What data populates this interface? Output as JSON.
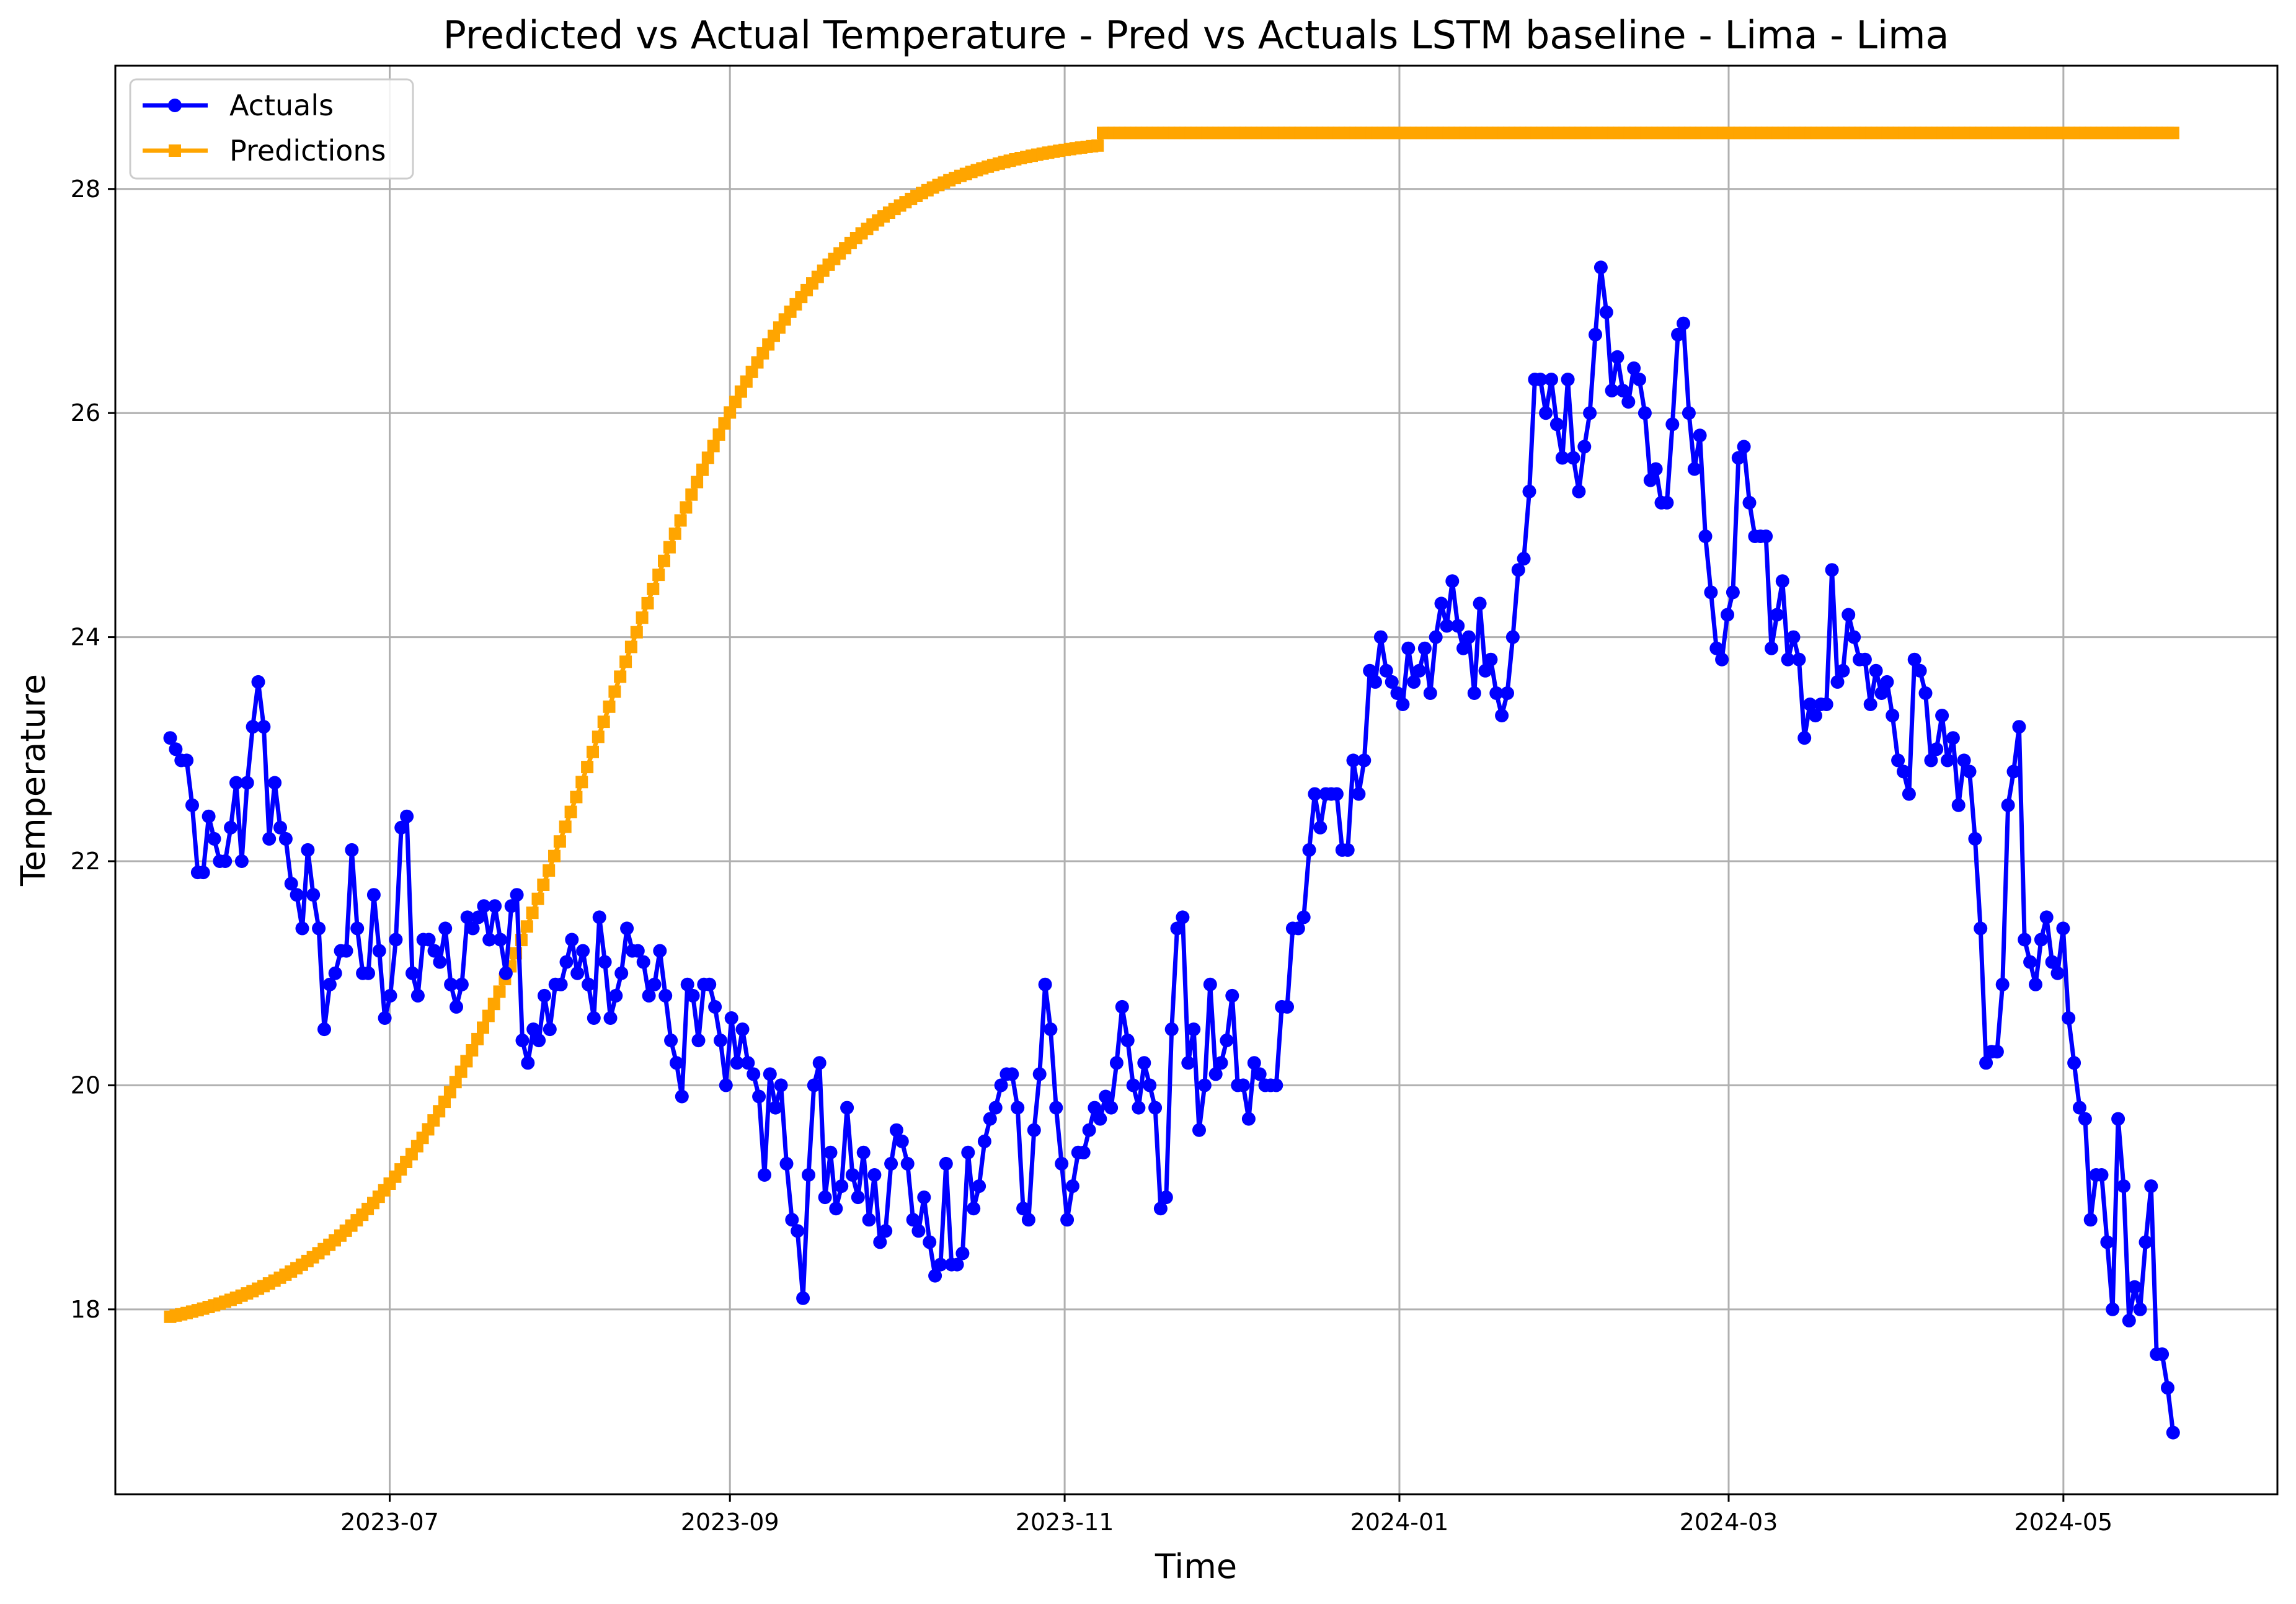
{
  "chart_data": {
    "type": "line",
    "title": "Predicted vs Actual Temperature - Pred vs Actuals LSTM baseline - Lima - Lima",
    "xlabel": "Time",
    "ylabel": "Temperature",
    "x_ticks": [
      "2023-07",
      "2023-09",
      "2023-11",
      "2024-01",
      "2024-03",
      "2024-05"
    ],
    "y_ticks": [
      18,
      20,
      22,
      24,
      26,
      28
    ],
    "xlim": [
      "2023-05-12",
      "2024-06-09"
    ],
    "ylim": [
      16.35,
      29.1
    ],
    "grid": true,
    "legend_position": "top-left",
    "x_start": "2023-05-22",
    "x_end": "2024-05-21",
    "series": [
      {
        "name": "Actuals",
        "color": "#0000ff",
        "marker": "circle",
        "values": [
          23.1,
          23.0,
          22.9,
          22.9,
          22.5,
          21.9,
          21.9,
          22.4,
          22.2,
          22.0,
          22.0,
          22.3,
          22.7,
          22.0,
          22.7,
          23.2,
          23.6,
          23.2,
          22.2,
          22.7,
          22.3,
          22.2,
          21.8,
          21.7,
          21.4,
          22.1,
          21.7,
          21.4,
          20.5,
          20.9,
          21.0,
          21.2,
          21.2,
          22.1,
          21.4,
          21.0,
          21.0,
          21.7,
          21.2,
          20.6,
          20.8,
          21.3,
          22.3,
          22.4,
          21.0,
          20.8,
          21.3,
          21.3,
          21.2,
          21.1,
          21.4,
          20.9,
          20.7,
          20.9,
          21.5,
          21.4,
          21.5,
          21.6,
          21.3,
          21.6,
          21.3,
          21.0,
          21.6,
          21.7,
          20.4,
          20.2,
          20.5,
          20.4,
          20.8,
          20.5,
          20.9,
          20.9,
          21.1,
          21.3,
          21.0,
          21.2,
          20.9,
          20.6,
          21.5,
          21.1,
          20.6,
          20.8,
          21.0,
          21.4,
          21.2,
          21.2,
          21.1,
          20.8,
          20.9,
          21.2,
          20.8,
          20.4,
          20.2,
          19.9,
          20.9,
          20.8,
          20.4,
          20.9,
          20.9,
          20.7,
          20.4,
          20.0,
          20.6,
          20.2,
          20.5,
          20.2,
          20.1,
          19.9,
          19.2,
          20.1,
          19.8,
          20.0,
          19.3,
          18.8,
          18.7,
          18.1,
          19.2,
          20.0,
          20.2,
          19.0,
          19.4,
          18.9,
          19.1,
          19.8,
          19.2,
          19.0,
          19.4,
          18.8,
          19.2,
          18.6,
          18.7,
          19.3,
          19.6,
          19.5,
          19.3,
          18.8,
          18.7,
          19.0,
          18.6,
          18.3,
          18.4,
          19.3,
          18.4,
          18.4,
          18.5,
          19.4,
          18.9,
          19.1,
          19.5,
          19.7,
          19.8,
          20.0,
          20.1,
          20.1,
          19.8,
          18.9,
          18.8,
          19.6,
          20.1,
          20.9,
          20.5,
          19.8,
          19.3,
          18.8,
          19.1,
          19.4,
          19.4,
          19.6,
          19.8,
          19.7,
          19.9,
          19.8,
          20.2,
          20.7,
          20.4,
          20.0,
          19.8,
          20.2,
          20.0,
          19.8,
          18.9,
          19.0,
          20.5,
          21.4,
          21.5,
          20.2,
          20.5,
          19.6,
          20.0,
          20.9,
          20.1,
          20.2,
          20.4,
          20.8,
          20.0,
          20.0,
          19.7,
          20.2,
          20.1,
          20.0,
          20.0,
          20.0,
          20.7,
          20.7,
          21.4,
          21.4,
          21.5,
          22.1,
          22.6,
          22.3,
          22.6,
          22.6,
          22.6,
          22.1,
          22.1,
          22.9,
          22.6,
          22.9,
          23.7,
          23.6,
          24.0,
          23.7,
          23.6,
          23.5,
          23.4,
          23.9,
          23.6,
          23.7,
          23.9,
          23.5,
          24.0,
          24.3,
          24.1,
          24.5,
          24.1,
          23.9,
          24.0,
          23.5,
          24.3,
          23.7,
          23.8,
          23.5,
          23.3,
          23.5,
          24.0,
          24.6,
          24.7,
          25.3,
          26.3,
          26.3,
          26.0,
          26.3,
          25.9,
          25.6,
          26.3,
          25.6,
          25.3,
          25.7,
          26.0,
          26.7,
          27.3,
          26.9,
          26.2,
          26.5,
          26.2,
          26.1,
          26.4,
          26.3,
          26.0,
          25.4,
          25.5,
          25.2,
          25.2,
          25.9,
          26.7,
          26.8,
          26.0,
          25.5,
          25.8,
          24.9,
          24.4,
          23.9,
          23.8,
          24.2,
          24.4,
          25.6,
          25.7,
          25.2,
          24.9,
          24.9,
          24.9,
          23.9,
          24.2,
          24.5,
          23.8,
          24.0,
          23.8,
          23.1,
          23.4,
          23.3,
          23.4,
          23.4,
          24.6,
          23.6,
          23.7,
          24.2,
          24.0,
          23.8,
          23.8,
          23.4,
          23.7,
          23.5,
          23.6,
          23.3,
          22.9,
          22.8,
          22.6,
          23.8,
          23.7,
          23.5,
          22.9,
          23.0,
          23.3,
          22.9,
          23.1,
          22.5,
          22.9,
          22.8,
          22.2,
          21.4,
          20.2,
          20.3,
          20.3,
          20.9,
          22.5,
          22.8,
          23.2,
          21.3,
          21.1,
          20.9,
          21.3,
          21.5,
          21.1,
          21.0,
          21.4,
          20.6,
          20.2,
          19.8,
          19.7,
          18.8,
          19.2,
          19.2,
          18.6,
          18.0,
          19.7,
          19.1,
          17.9,
          18.2,
          18.0,
          18.6,
          19.1,
          17.6,
          17.6,
          17.3,
          16.9
        ]
      },
      {
        "name": "Predictions",
        "color": "#ffa500",
        "marker": "square",
        "logistic_model": {
          "base": 17.72,
          "amplitude": 10.78,
          "midpoint_day": 78,
          "rate": 0.05,
          "until_day": 169
        },
        "plateau": 28.5
      }
    ]
  }
}
